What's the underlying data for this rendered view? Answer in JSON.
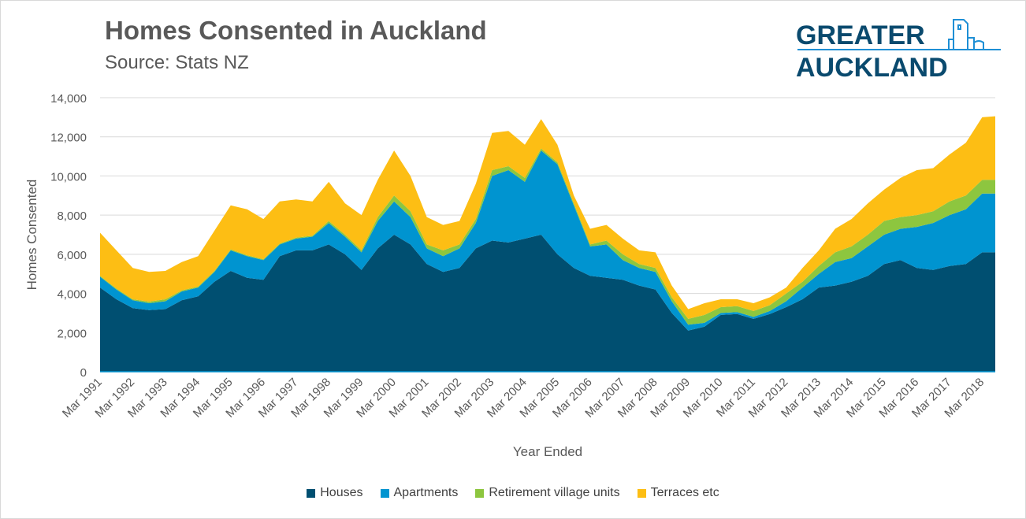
{
  "title": "Homes Consented in Auckland",
  "subtitle": "Source: Stats NZ",
  "logo": {
    "line1": "GREATER",
    "line2": "AUCKLAND"
  },
  "chart_data": {
    "type": "area",
    "stacked": true,
    "title": "Homes Consented in Auckland",
    "xlabel": "Year Ended",
    "ylabel": "Homes Consented",
    "ylim": [
      0,
      14000
    ],
    "yticks": [
      0,
      2000,
      4000,
      6000,
      8000,
      10000,
      12000,
      14000
    ],
    "ytick_labels": [
      "0",
      "2,000",
      "4,000",
      "6,000",
      "8,000",
      "10,000",
      "12,000",
      "14,000"
    ],
    "xlim_years_since_mar1991": [
      0,
      27.4
    ],
    "xtick_labels": [
      "Mar 1991",
      "Mar 1992",
      "Mar 1993",
      "Mar 1994",
      "Mar 1995",
      "Mar 1996",
      "Mar 1997",
      "Mar 1998",
      "Mar 1999",
      "Mar 2000",
      "Mar 2001",
      "Mar 2002",
      "Mar 2003",
      "Mar 2004",
      "Mar 2005",
      "Mar 2006",
      "Mar 2007",
      "Mar 2008",
      "Mar 2009",
      "Mar 2010",
      "Mar 2011",
      "Mar 2012",
      "Mar 2013",
      "Mar 2014",
      "Mar 2015",
      "Mar 2016",
      "Mar 2017",
      "Mar 2018"
    ],
    "grid": true,
    "legend_position": "bottom",
    "x": [
      0,
      0.5,
      1,
      1.5,
      2,
      2.5,
      3,
      3.5,
      4,
      4.5,
      5,
      5.5,
      6,
      6.5,
      7,
      7.5,
      8,
      8.5,
      9,
      9.5,
      10,
      10.5,
      11,
      11.5,
      12,
      12.5,
      13,
      13.5,
      14,
      14.5,
      15,
      15.5,
      16,
      16.5,
      17,
      17.5,
      18,
      18.5,
      19,
      19.5,
      20,
      20.5,
      21,
      21.5,
      22,
      22.5,
      23,
      23.5,
      24,
      24.5,
      25,
      25.5,
      26,
      26.5,
      27,
      27.4
    ],
    "series": [
      {
        "name": "Houses",
        "color": "#004f71",
        "values": [
          4300,
          3700,
          3250,
          3150,
          3200,
          3650,
          3850,
          4600,
          5150,
          4800,
          4700,
          5900,
          6200,
          6200,
          6500,
          6000,
          5200,
          6300,
          7000,
          6500,
          5500,
          5100,
          5300,
          6300,
          6700,
          6600,
          6800,
          7000,
          6000,
          5300,
          4900,
          4800,
          4700,
          4400,
          4200,
          3000,
          2100,
          2300,
          2900,
          2950,
          2700,
          2950,
          3300,
          3700,
          4300,
          4400,
          4600,
          4900,
          5500,
          5700,
          5300,
          5200,
          5400,
          5500,
          6100,
          6100
        ]
      },
      {
        "name": "Apartments",
        "color": "#0094d0",
        "values": [
          550,
          500,
          400,
          350,
          400,
          450,
          450,
          500,
          1050,
          1100,
          1000,
          600,
          600,
          700,
          1100,
          900,
          900,
          1400,
          1700,
          1400,
          800,
          800,
          1000,
          1300,
          3300,
          3700,
          2900,
          4300,
          4600,
          3200,
          1500,
          1700,
          1000,
          900,
          900,
          600,
          300,
          200,
          100,
          100,
          100,
          150,
          300,
          600,
          700,
          1200,
          1200,
          1500,
          1500,
          1600,
          2100,
          2400,
          2600,
          2800,
          3000,
          3000
        ]
      },
      {
        "name": "Retirement village units",
        "color": "#8dc63f",
        "values": [
          50,
          50,
          50,
          80,
          100,
          50,
          50,
          50,
          50,
          50,
          50,
          50,
          50,
          50,
          100,
          100,
          100,
          200,
          300,
          300,
          200,
          300,
          200,
          200,
          300,
          200,
          200,
          100,
          100,
          100,
          100,
          200,
          300,
          200,
          200,
          200,
          300,
          400,
          300,
          300,
          300,
          300,
          400,
          300,
          400,
          500,
          600,
          600,
          700,
          600,
          600,
          600,
          700,
          700,
          700,
          700
        ]
      },
      {
        "name": "Terraces etc",
        "color": "#fdbe14",
        "values": [
          2200,
          1950,
          1600,
          1520,
          1450,
          1450,
          1550,
          2050,
          2250,
          2350,
          2050,
          2150,
          1950,
          1750,
          2000,
          1600,
          1800,
          1900,
          2300,
          1800,
          1400,
          1300,
          1200,
          1800,
          1900,
          1800,
          1700,
          1500,
          900,
          400,
          800,
          800,
          800,
          700,
          800,
          600,
          500,
          600,
          400,
          350,
          400,
          400,
          300,
          700,
          800,
          1200,
          1400,
          1600,
          1600,
          2000,
          2300,
          2200,
          2400,
          2700,
          3200,
          3250
        ]
      }
    ]
  }
}
